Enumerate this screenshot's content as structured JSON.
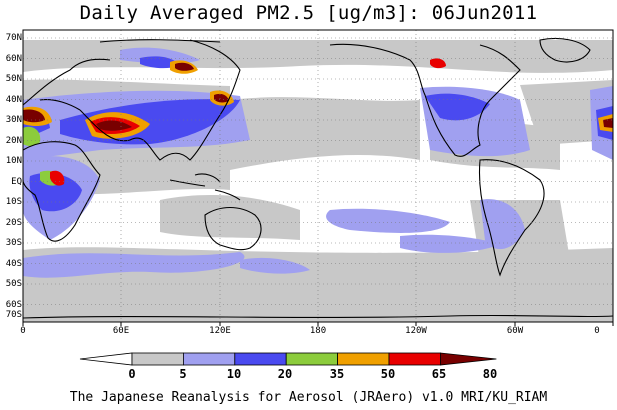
{
  "title": "Daily Averaged PM2.5 [ug/m3]: 06Jun2011",
  "lat_ticks": [
    "70N",
    "60N",
    "50N",
    "40N",
    "30N",
    "20N",
    "10N",
    "EQ",
    "10S",
    "20S",
    "30S",
    "40S",
    "50S",
    "60S",
    "70S"
  ],
  "lon_ticks": [
    "0",
    "60E",
    "120E",
    "180",
    "120W",
    "60W",
    "0"
  ],
  "colorbar": {
    "labels": [
      "0",
      "5",
      "10",
      "20",
      "35",
      "50",
      "65",
      "80"
    ],
    "colors": [
      "#ffffff",
      "#c8c8c8",
      "#a0a0f0",
      "#4a4af0",
      "#8ccc3c",
      "#f0a000",
      "#e80000",
      "#780000"
    ]
  },
  "credit": "The Japanese Reanalysis for Aerosol (JRAero) v1.0 MRI/KU_RIAM"
}
